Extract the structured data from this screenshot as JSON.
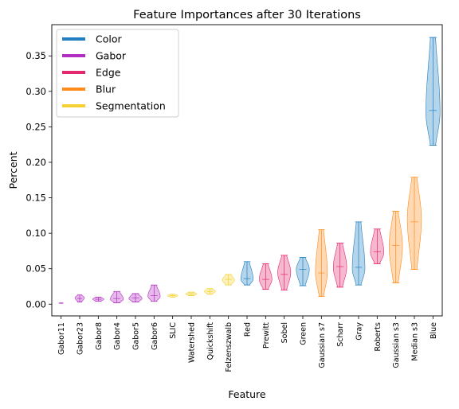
{
  "chart_data": {
    "type": "violin",
    "title": "Feature Importances after 30 Iterations",
    "xlabel": "Feature",
    "ylabel": "Percent",
    "ylim": [
      -0.0165,
      0.394
    ],
    "yticks": [
      0.0,
      0.05,
      0.1,
      0.15,
      0.2,
      0.25,
      0.3,
      0.35
    ],
    "ytick_labels": [
      "0.00",
      "0.05",
      "0.10",
      "0.15",
      "0.20",
      "0.25",
      "0.30",
      "0.35"
    ],
    "grid": false,
    "legend_position": "top-left",
    "legend": [
      {
        "name": "Color",
        "color": "#1f7fc1"
      },
      {
        "name": "Gabor",
        "color": "#b02ec0"
      },
      {
        "name": "Edge",
        "color": "#e3286e"
      },
      {
        "name": "Blur",
        "color": "#ff8c1a"
      },
      {
        "name": "Segmentation",
        "color": "#f5d232"
      }
    ],
    "categories": [
      "Gabor11",
      "Gabor23",
      "Gabor8",
      "Gabor4",
      "Gabor5",
      "Gabor6",
      "SLIC",
      "Watershed",
      "Quickshift",
      "Felzenszwalb",
      "Red",
      "Prewitt",
      "Sobel",
      "Green",
      "Gaussian s7",
      "Scharr",
      "Gray",
      "Roberts",
      "Gaussian s3",
      "Median s3",
      "Blue"
    ],
    "violins": [
      {
        "feature": "Gabor11",
        "group": "Gabor",
        "min": 0.0012,
        "max": 0.0018,
        "median": 0.0015,
        "peak": 0.0015,
        "width": 0.12
      },
      {
        "feature": "Gabor23",
        "group": "Gabor",
        "min": 0.003,
        "max": 0.013,
        "median": 0.008,
        "peak": 0.009,
        "width": 0.25
      },
      {
        "feature": "Gabor8",
        "group": "Gabor",
        "min": 0.004,
        "max": 0.01,
        "median": 0.007,
        "peak": 0.007,
        "width": 0.3
      },
      {
        "feature": "Gabor4",
        "group": "Gabor",
        "min": 0.002,
        "max": 0.018,
        "median": 0.008,
        "peak": 0.007,
        "width": 0.35
      },
      {
        "feature": "Gabor5",
        "group": "Gabor",
        "min": 0.003,
        "max": 0.015,
        "median": 0.009,
        "peak": 0.008,
        "width": 0.35
      },
      {
        "feature": "Gabor6",
        "group": "Gabor",
        "min": 0.004,
        "max": 0.027,
        "median": 0.012,
        "peak": 0.011,
        "width": 0.33
      },
      {
        "feature": "SLIC",
        "group": "Segmentation",
        "min": 0.01,
        "max": 0.014,
        "median": 0.012,
        "peak": 0.012,
        "width": 0.28
      },
      {
        "feature": "Watershed",
        "group": "Segmentation",
        "min": 0.012,
        "max": 0.017,
        "median": 0.0145,
        "peak": 0.0145,
        "width": 0.3
      },
      {
        "feature": "Quickshift",
        "group": "Segmentation",
        "min": 0.014,
        "max": 0.022,
        "median": 0.018,
        "peak": 0.018,
        "width": 0.3
      },
      {
        "feature": "Felzenszwalb",
        "group": "Segmentation",
        "min": 0.027,
        "max": 0.042,
        "median": 0.035,
        "peak": 0.034,
        "width": 0.33
      },
      {
        "feature": "Red",
        "group": "Color",
        "min": 0.027,
        "max": 0.06,
        "median": 0.036,
        "peak": 0.035,
        "width": 0.33
      },
      {
        "feature": "Prewitt",
        "group": "Edge",
        "min": 0.021,
        "max": 0.057,
        "median": 0.035,
        "peak": 0.035,
        "width": 0.34
      },
      {
        "feature": "Sobel",
        "group": "Edge",
        "min": 0.02,
        "max": 0.069,
        "median": 0.042,
        "peak": 0.045,
        "width": 0.35
      },
      {
        "feature": "Green",
        "group": "Color",
        "min": 0.026,
        "max": 0.066,
        "median": 0.049,
        "peak": 0.049,
        "width": 0.35
      },
      {
        "feature": "Gaussian s7",
        "group": "Blur",
        "min": 0.011,
        "max": 0.105,
        "median": 0.044,
        "peak": 0.045,
        "width": 0.32
      },
      {
        "feature": "Scharr",
        "group": "Edge",
        "min": 0.024,
        "max": 0.086,
        "median": 0.053,
        "peak": 0.052,
        "width": 0.36
      },
      {
        "feature": "Gray",
        "group": "Color",
        "min": 0.027,
        "max": 0.116,
        "median": 0.052,
        "peak": 0.05,
        "width": 0.34
      },
      {
        "feature": "Roberts",
        "group": "Edge",
        "min": 0.057,
        "max": 0.106,
        "median": 0.074,
        "peak": 0.073,
        "width": 0.36
      },
      {
        "feature": "Gaussian s3",
        "group": "Blur",
        "min": 0.03,
        "max": 0.131,
        "median": 0.083,
        "peak": 0.082,
        "width": 0.36
      },
      {
        "feature": "Median s3",
        "group": "Blur",
        "min": 0.049,
        "max": 0.179,
        "median": 0.116,
        "peak": 0.12,
        "width": 0.38
      },
      {
        "feature": "Blue",
        "group": "Color",
        "min": 0.224,
        "max": 0.376,
        "median": 0.273,
        "peak": 0.27,
        "width": 0.38
      }
    ]
  }
}
